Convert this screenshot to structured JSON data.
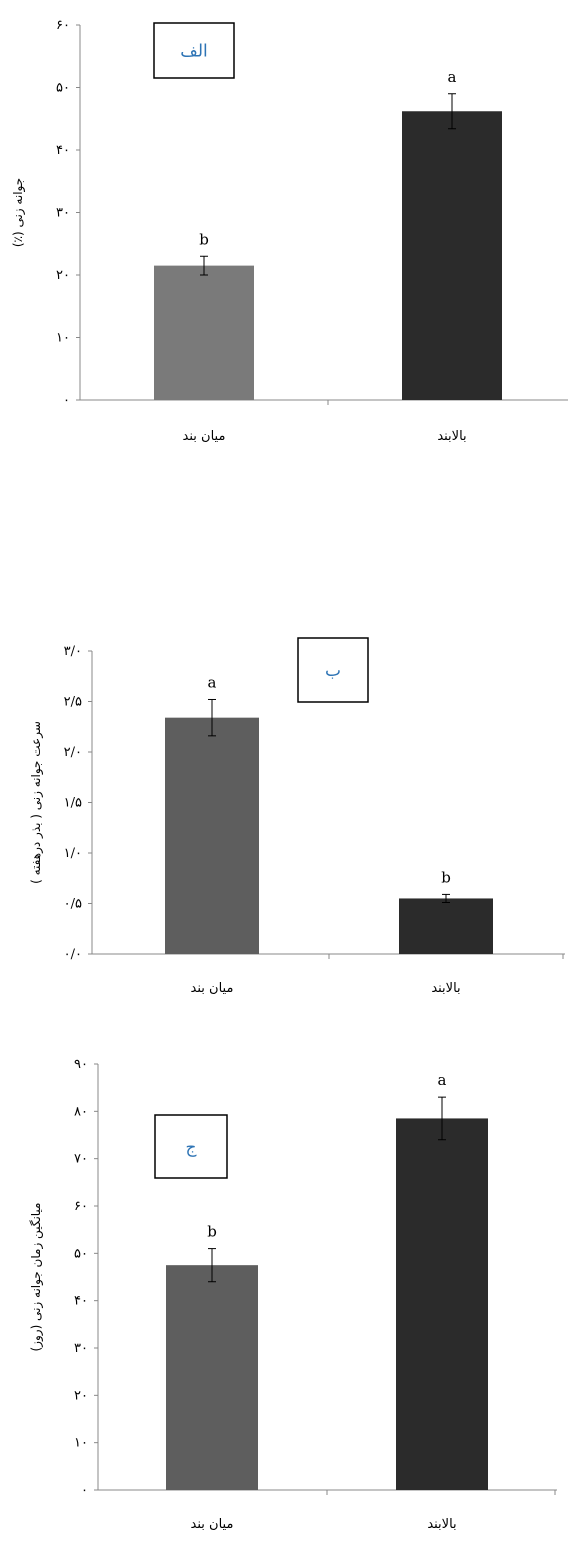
{
  "chart_data": [
    {
      "type": "bar",
      "panel_label": "الف",
      "categories": [
        "میان بند",
        "بالابند"
      ],
      "values": [
        21.5,
        46.2
      ],
      "errors": [
        1.5,
        2.8
      ],
      "significance": [
        "b",
        "a"
      ],
      "colors": [
        "#7a7a7a",
        "#2b2b2b"
      ],
      "ylabel": "جوانه زنی (٪)",
      "ylim": [
        0,
        60
      ],
      "yticks": [
        "۰",
        "۱۰",
        "۲۰",
        "۳۰",
        "۴۰",
        "۵۰",
        "۶۰"
      ],
      "xlabel": ""
    },
    {
      "type": "bar",
      "panel_label": "ب",
      "categories": [
        "میان بند",
        "بالابند"
      ],
      "values": [
        2.34,
        0.55
      ],
      "errors": [
        0.18,
        0.04
      ],
      "significance": [
        "a",
        "b"
      ],
      "colors": [
        "#5e5e5e",
        "#2b2b2b"
      ],
      "ylabel": "سرعت جوانه زنی ( بذر درهفته )",
      "ylim": [
        0,
        3
      ],
      "yticks": [
        "۰/۰",
        "۰/۵",
        "۱/۰",
        "۱/۵",
        "۲/۰",
        "۲/۵",
        "۳/۰"
      ],
      "xlabel": ""
    },
    {
      "type": "bar",
      "panel_label": "ج",
      "categories": [
        "میان بند",
        "بالابند"
      ],
      "values": [
        47.5,
        78.5
      ],
      "errors": [
        3.5,
        4.5
      ],
      "significance": [
        "b",
        "a"
      ],
      "colors": [
        "#5e5e5e",
        "#2b2b2b"
      ],
      "ylabel": "میانگین زمان جوانه زنی (روز)",
      "ylim": [
        0,
        90
      ],
      "yticks": [
        "۰",
        "۱۰",
        "۲۰",
        "۳۰",
        "۴۰",
        "۵۰",
        "۶۰",
        "۷۰",
        "۸۰",
        "۹۰"
      ],
      "xlabel": ""
    }
  ]
}
